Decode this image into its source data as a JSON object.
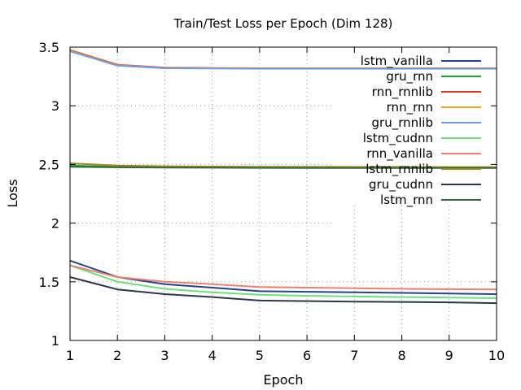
{
  "chart_data": {
    "type": "line",
    "title": "Train/Test Loss per Epoch (Dim 128)",
    "xlabel": "Epoch",
    "ylabel": "Loss",
    "xlim": [
      1,
      10
    ],
    "ylim": [
      1,
      3.5
    ],
    "xticks": [
      1,
      2,
      3,
      4,
      5,
      6,
      7,
      8,
      9,
      10
    ],
    "yticks": [
      1,
      1.5,
      2,
      2.5,
      3,
      3.5
    ],
    "ytick_labels": [
      "1",
      "1.5",
      "2",
      "2.5",
      "3",
      "3.5"
    ],
    "grid": true,
    "legend_position": "top-right",
    "x": [
      1,
      2,
      3,
      4,
      5,
      6,
      7,
      8,
      9,
      10
    ],
    "series": [
      {
        "name": "lstm_vanilla",
        "color": "#24408e",
        "values": [
          1.68,
          1.54,
          1.48,
          1.45,
          1.42,
          1.415,
          1.41,
          1.405,
          1.4,
          1.395
        ]
      },
      {
        "name": "gru_rnn",
        "color": "#1fa839",
        "values": [
          2.49,
          2.48,
          2.478,
          2.476,
          2.475,
          2.474,
          2.473,
          2.473,
          2.472,
          2.472
        ]
      },
      {
        "name": "rnn_rnnlib",
        "color": "#d83b1c",
        "values": [
          3.475,
          3.35,
          3.325,
          3.322,
          3.32,
          3.32,
          3.32,
          3.32,
          3.32,
          3.32
        ]
      },
      {
        "name": "rnn_rnn",
        "color": "#f0a020",
        "values": [
          3.47,
          3.345,
          3.322,
          3.32,
          3.318,
          3.318,
          3.318,
          3.318,
          3.318,
          3.318
        ]
      },
      {
        "name": "gru_rnnlib",
        "color": "#6f9be8",
        "values": [
          3.465,
          3.342,
          3.32,
          3.318,
          3.316,
          3.316,
          3.316,
          3.316,
          3.316,
          3.316
        ]
      },
      {
        "name": "lstm_cudnn",
        "color": "#6ee07a",
        "values": [
          1.64,
          1.5,
          1.44,
          1.41,
          1.39,
          1.38,
          1.375,
          1.37,
          1.365,
          1.36
        ]
      },
      {
        "name": "rnn_vanilla",
        "color": "#ee8070",
        "values": [
          1.64,
          1.54,
          1.5,
          1.48,
          1.455,
          1.45,
          1.445,
          1.44,
          1.437,
          1.435
        ]
      },
      {
        "name": "lstm_rnnlib",
        "color": "#a08a20",
        "values": [
          2.51,
          2.49,
          2.485,
          2.482,
          2.48,
          2.48,
          2.479,
          2.479,
          2.478,
          2.478
        ]
      },
      {
        "name": "gru_cudnn",
        "color": "#30344a",
        "values": [
          1.54,
          1.435,
          1.395,
          1.37,
          1.34,
          1.335,
          1.33,
          1.328,
          1.325,
          1.318
        ]
      },
      {
        "name": "lstm_rnn",
        "color": "#2e6b3a",
        "values": [
          2.48,
          2.476,
          2.474,
          2.472,
          2.471,
          2.47,
          2.47,
          2.47,
          2.47,
          2.47
        ]
      }
    ]
  }
}
